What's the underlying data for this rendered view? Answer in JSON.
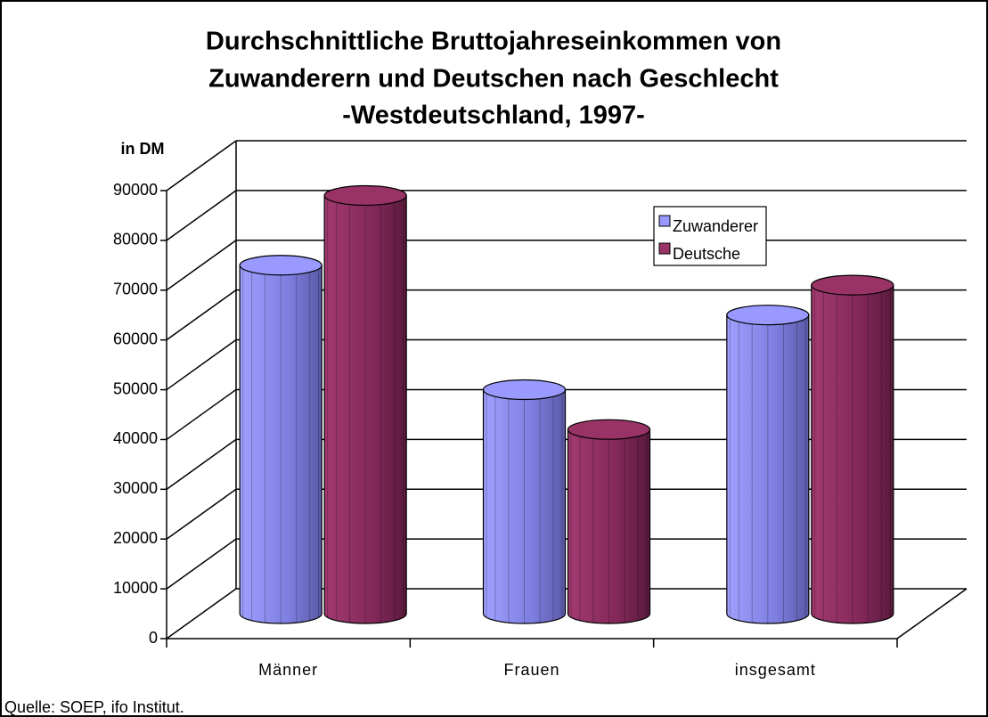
{
  "chart_data": {
    "type": "cylinder-bar",
    "title": [
      "Durchschnittliche Bruttojahreseinkommen von",
      "Zuwanderern und Deutschen nach Geschlecht",
      "-Westdeutschland, 1997-"
    ],
    "y_axis_label": "in DM",
    "source": "Quelle: SOEP, ifo Institut.",
    "categories": [
      "Männer",
      "Frauen",
      "insgesamt"
    ],
    "series": [
      {
        "name": "Zuwanderer",
        "color": "#9999ff",
        "values": [
          70000,
          45000,
          60000
        ]
      },
      {
        "name": "Deutsche",
        "color": "#993366",
        "values": [
          84000,
          37000,
          66000
        ]
      }
    ],
    "ylim": [
      0,
      90000
    ],
    "yticks": [
      0,
      10000,
      20000,
      30000,
      40000,
      50000,
      60000,
      70000,
      80000,
      90000
    ],
    "grid": true,
    "legend": "upper right"
  }
}
